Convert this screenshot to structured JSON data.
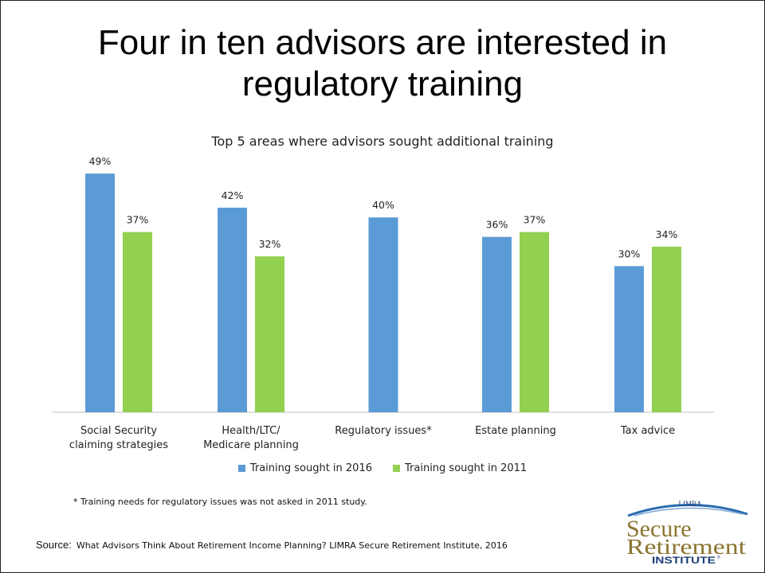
{
  "slide": {
    "title_line1": "Four in ten advisors are interested in",
    "title_line2": "regulatory training",
    "footnote": "* Training needs for regulatory issues was not asked in 2011 study.",
    "source_label": "Source:",
    "source_text": "What Advisors Think About Retirement  Income Planning? LIMRA Secure Retirement  Institute, 2016"
  },
  "logo": {
    "top": "LIMRA",
    "line1": "Secure",
    "line2": "Retirement",
    "line3": "INSTITUTE",
    "tm": "®"
  },
  "chart_data": {
    "type": "bar",
    "title": "Top 5 areas where advisors sought additional training",
    "categories": [
      [
        "Social Security",
        "claiming strategies"
      ],
      [
        "Health/LTC/",
        "Medicare planning"
      ],
      [
        "Regulatory issues*"
      ],
      [
        "Estate planning"
      ],
      [
        "Tax advice"
      ]
    ],
    "series": [
      {
        "name": "Training sought in 2016",
        "color": "#5B9BD5",
        "values": [
          49,
          42,
          40,
          36,
          30
        ]
      },
      {
        "name": "Training sought in 2011",
        "color": "#92D050",
        "values": [
          37,
          32,
          null,
          37,
          34
        ]
      }
    ],
    "value_suffix": "%",
    "ylim": [
      0,
      50
    ],
    "grid": false,
    "legend": "bottom"
  }
}
